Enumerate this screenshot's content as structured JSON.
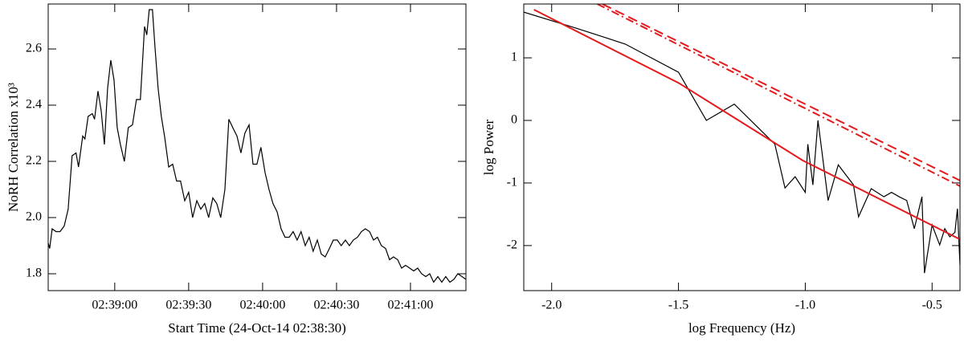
{
  "chart_data": [
    {
      "type": "line",
      "xlabel": "Start Time (24-Oct-14 02:38:30)",
      "ylabel": "NoRH Correlation x10³",
      "xlim": [
        3,
        172.5
      ],
      "xticks": [
        {
          "value": 30,
          "label": "02:39:00"
        },
        {
          "value": 60,
          "label": "02:39:30"
        },
        {
          "value": 90,
          "label": "02:40:00"
        },
        {
          "value": 120,
          "label": "02:40:30"
        },
        {
          "value": 150,
          "label": "02:41:00"
        }
      ],
      "ylim": [
        1.74,
        2.76
      ],
      "yticks": [
        1.8,
        {
          "value": 2,
          "label": "2.0"
        },
        2.2,
        2.4,
        2.6
      ],
      "series": [
        {
          "color": "#000000",
          "dash": "solid",
          "x": [
            3,
            3.6,
            4.6,
            6.2,
            7.8,
            9.5,
            11.1,
            12.7,
            14.3,
            15.3,
            17,
            17.9,
            19.2,
            20.9,
            21.8,
            23.2,
            24.5,
            25.8,
            27.1,
            28.4,
            29.7,
            31,
            32.3,
            33.9,
            35.5,
            37.2,
            38.8,
            40.4,
            42.1,
            43,
            44,
            45.3,
            46.3,
            47.6,
            48.9,
            50.2,
            51.9,
            53.5,
            55.1,
            56.7,
            58.4,
            60,
            61.6,
            63.3,
            64.9,
            66.5,
            68.1,
            69.8,
            71.4,
            73,
            74.7,
            76.3,
            77.9,
            79.6,
            81.2,
            82.8,
            84.5,
            86.1,
            87.7,
            89.3,
            91,
            92.6,
            94.2,
            95.9,
            97.5,
            99.1,
            100.8,
            102.4,
            104,
            105.6,
            107.3,
            108.9,
            110.5,
            112.2,
            113.8,
            115.4,
            117.1,
            118.7,
            120.3,
            121.9,
            123.6,
            125.2,
            126.8,
            128.5,
            130.1,
            131.7,
            133.4,
            135,
            136.6,
            138.2,
            139.9,
            141.5,
            143.1,
            144.8,
            146.4,
            148,
            149.7,
            151.3,
            152.9,
            154.5,
            156.2,
            157.8,
            159.4,
            161.1,
            162.7,
            164.3,
            166,
            167.6,
            169.2,
            170.9,
            172.5
          ],
          "values": [
            1.91,
            1.89,
            1.96,
            1.95,
            1.95,
            1.97,
            2.03,
            2.22,
            2.23,
            2.18,
            2.29,
            2.28,
            2.36,
            2.37,
            2.35,
            2.45,
            2.38,
            2.26,
            2.46,
            2.56,
            2.49,
            2.32,
            2.26,
            2.2,
            2.32,
            2.33,
            2.42,
            2.42,
            2.68,
            2.65,
            2.74,
            2.74,
            2.61,
            2.46,
            2.36,
            2.29,
            2.18,
            2.19,
            2.13,
            2.13,
            2.06,
            2.09,
            2,
            2.06,
            2.03,
            2.05,
            2,
            2.07,
            2.05,
            2,
            2.1,
            2.35,
            2.32,
            2.29,
            2.23,
            2.3,
            2.33,
            2.19,
            2.19,
            2.25,
            2.16,
            2.1,
            2.05,
            2.02,
            1.96,
            1.93,
            1.93,
            1.95,
            1.92,
            1.95,
            1.9,
            1.93,
            1.88,
            1.92,
            1.87,
            1.86,
            1.89,
            1.92,
            1.92,
            1.9,
            1.92,
            1.9,
            1.92,
            1.93,
            1.95,
            1.96,
            1.95,
            1.92,
            1.93,
            1.9,
            1.89,
            1.85,
            1.86,
            1.85,
            1.82,
            1.83,
            1.82,
            1.81,
            1.82,
            1.8,
            1.79,
            1.8,
            1.77,
            1.79,
            1.77,
            1.79,
            1.77,
            1.78,
            1.8,
            1.79,
            1.78
          ]
        }
      ]
    },
    {
      "type": "line",
      "xlabel": "log Frequency (Hz)",
      "ylabel": "log Power",
      "xlim": [
        -2.11,
        -0.39
      ],
      "xticks": [
        {
          "value": -2,
          "label": "-2.0"
        },
        -1.5,
        {
          "value": -1,
          "label": "-1.0"
        },
        -0.5
      ],
      "ylim": [
        -2.72,
        1.86
      ],
      "yticks": [
        -2,
        -1,
        0,
        1
      ],
      "series": [
        {
          "color": "#000000",
          "dash": "solid",
          "x": [
            -2.11,
            -1.9,
            -1.71,
            -1.5,
            -1.39,
            -1.28,
            -1.12,
            -1.08,
            -1.04,
            -1,
            -0.99,
            -0.97,
            -0.95,
            -0.91,
            -0.87,
            -0.81,
            -0.79,
            -0.74,
            -0.69,
            -0.66,
            -0.63,
            -0.6,
            -0.57,
            -0.54,
            -0.53,
            -0.5,
            -0.47,
            -0.45,
            -0.43,
            -0.41,
            -0.4,
            -0.39
          ],
          "values": [
            1.73,
            1.47,
            1.22,
            0.77,
            0,
            0.26,
            -0.38,
            -1.08,
            -0.9,
            -1.15,
            -0.38,
            -1.03,
            0,
            -1.28,
            -0.71,
            -1.03,
            -1.54,
            -1.09,
            -1.22,
            -1.15,
            -1.22,
            -1.28,
            -1.73,
            -1.22,
            -2.44,
            -1.67,
            -1.99,
            -1.73,
            -1.86,
            -1.79,
            -1.41,
            -2.31
          ]
        },
        {
          "color": "#e41a1c",
          "dash": "solid",
          "x": [
            -2.07,
            -1.5,
            -1.01,
            -0.39
          ],
          "values": [
            1.77,
            0.6,
            -0.64,
            -1.9
          ]
        },
        {
          "color": "#e41a1c",
          "dash": "dashed",
          "x": [
            -1.8,
            -0.39
          ],
          "values": [
            1.86,
            -0.96
          ]
        },
        {
          "color": "#e41a1c",
          "dash": "dashdot",
          "x": [
            -1.82,
            -0.39
          ],
          "values": [
            1.86,
            -1.05
          ]
        }
      ]
    }
  ]
}
